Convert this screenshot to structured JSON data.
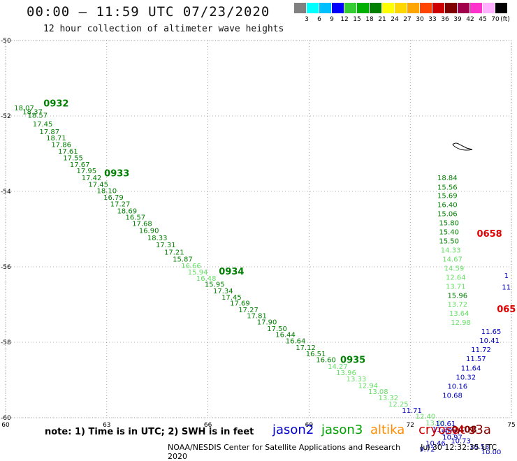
{
  "header": {
    "title": "00:00 – 11:59 UTC 07/23/2020",
    "subtitle": "12 hour collection of altimeter wave heights"
  },
  "colorbar": {
    "colors": [
      "#808080",
      "#00ffff",
      "#00bfff",
      "#0000ff",
      "#33cc33",
      "#00b000",
      "#008000",
      "#ffff00",
      "#ffd700",
      "#ffa500",
      "#ff4500",
      "#cc0000",
      "#800000",
      "#a0004a",
      "#ff33cc",
      "#ffb0ff",
      "#000000"
    ],
    "labels": [
      "3",
      "6",
      "9",
      "12",
      "15",
      "18",
      "21",
      "24",
      "27",
      "30",
      "33",
      "36",
      "39",
      "42",
      "45",
      "70"
    ],
    "unit": "(ft)"
  },
  "axes": {
    "lon_ticks": [
      "60",
      "63",
      "66",
      "69",
      "72",
      "75"
    ],
    "lat_ticks": [
      "-50",
      "-52",
      "-54",
      "-56",
      "-58",
      "-60"
    ]
  },
  "chart_data": {
    "type": "scatter",
    "xlim": [
      60,
      75
    ],
    "ylim": [
      -60,
      -50
    ],
    "grid": true,
    "tracks": [
      {
        "color": "#008000",
        "points": [
          {
            "lon": 60.55,
            "lat": -51.85,
            "v": "18.07"
          },
          {
            "lon": 60.8,
            "lat": -51.95,
            "v": "18.37"
          },
          {
            "lon": 60.95,
            "lat": -52.05,
            "v": "18.57"
          },
          {
            "lon": 61.1,
            "lat": -52.28,
            "v": "17.45"
          },
          {
            "lon": 61.3,
            "lat": -52.48,
            "v": "17.87"
          },
          {
            "lon": 61.5,
            "lat": -52.65,
            "v": "18.71"
          },
          {
            "lon": 61.65,
            "lat": -52.82,
            "v": "17.86"
          },
          {
            "lon": 61.85,
            "lat": -53.0,
            "v": "17.61"
          },
          {
            "lon": 62.0,
            "lat": -53.18,
            "v": "17.55"
          },
          {
            "lon": 62.2,
            "lat": -53.35,
            "v": "17.67"
          },
          {
            "lon": 62.4,
            "lat": -53.52,
            "v": "17.95"
          },
          {
            "lon": 62.55,
            "lat": -53.7,
            "v": "17.42"
          },
          {
            "lon": 62.75,
            "lat": -53.88,
            "v": "17.45"
          },
          {
            "lon": 63.0,
            "lat": -54.05,
            "v": "18.10"
          },
          {
            "lon": 63.2,
            "lat": -54.22,
            "v": "16.79"
          },
          {
            "lon": 63.4,
            "lat": -54.4,
            "v": "17.27"
          },
          {
            "lon": 63.6,
            "lat": -54.58,
            "v": "18.69"
          },
          {
            "lon": 63.85,
            "lat": -54.75,
            "v": "16.57"
          },
          {
            "lon": 64.05,
            "lat": -54.92,
            "v": "17.68"
          },
          {
            "lon": 64.25,
            "lat": -55.1,
            "v": "16.90"
          },
          {
            "lon": 64.5,
            "lat": -55.3,
            "v": "18.33"
          },
          {
            "lon": 64.75,
            "lat": -55.48,
            "v": "17.31"
          },
          {
            "lon": 65.0,
            "lat": -55.68,
            "v": "17.21"
          },
          {
            "lon": 65.25,
            "lat": -55.86,
            "v": "15.87"
          }
        ]
      },
      {
        "color": "#66e066",
        "points": [
          {
            "lon": 65.5,
            "lat": -56.04,
            "v": "16.66"
          },
          {
            "lon": 65.7,
            "lat": -56.2,
            "v": "15.94"
          },
          {
            "lon": 65.95,
            "lat": -56.37,
            "v": "16.48"
          }
        ]
      },
      {
        "color": "#008000",
        "points": [
          {
            "lon": 66.2,
            "lat": -56.53,
            "v": "15.95"
          },
          {
            "lon": 66.45,
            "lat": -56.7,
            "v": "17.34"
          },
          {
            "lon": 66.7,
            "lat": -56.87,
            "v": "17.45"
          },
          {
            "lon": 66.95,
            "lat": -57.03,
            "v": "17.69"
          },
          {
            "lon": 67.2,
            "lat": -57.2,
            "v": "17.27"
          },
          {
            "lon": 67.45,
            "lat": -57.36,
            "v": "17.81"
          },
          {
            "lon": 67.75,
            "lat": -57.53,
            "v": "17.90"
          },
          {
            "lon": 68.05,
            "lat": -57.7,
            "v": "17.50"
          },
          {
            "lon": 68.3,
            "lat": -57.86,
            "v": "16.44"
          },
          {
            "lon": 68.6,
            "lat": -58.03,
            "v": "16.64"
          },
          {
            "lon": 68.9,
            "lat": -58.2,
            "v": "17.12"
          },
          {
            "lon": 69.2,
            "lat": -58.37,
            "v": "16.51"
          },
          {
            "lon": 69.5,
            "lat": -58.53,
            "v": "16.60"
          }
        ]
      },
      {
        "color": "#66e066",
        "points": [
          {
            "lon": 69.85,
            "lat": -58.7,
            "v": "14.27"
          },
          {
            "lon": 70.1,
            "lat": -58.87,
            "v": "13.96"
          },
          {
            "lon": 70.4,
            "lat": -59.04,
            "v": "13.33"
          },
          {
            "lon": 70.75,
            "lat": -59.21,
            "v": "12.94"
          },
          {
            "lon": 71.05,
            "lat": -59.37,
            "v": "13.08"
          },
          {
            "lon": 71.35,
            "lat": -59.54,
            "v": "13.32"
          },
          {
            "lon": 71.65,
            "lat": -59.7,
            "v": "12.25"
          }
        ]
      },
      {
        "color": "#0000c0",
        "points": [
          {
            "lon": 72.05,
            "lat": -59.87,
            "v": "11.71"
          }
        ]
      },
      {
        "color": "#66e066",
        "points": [
          {
            "lon": 72.45,
            "lat": -60.03,
            "v": "12.40"
          },
          {
            "lon": 72.75,
            "lat": -60.2,
            "v": "13.01"
          }
        ]
      },
      {
        "color": "#0000c0",
        "points": [
          {
            "lon": 73.05,
            "lat": -60.22,
            "v": "10.61"
          },
          {
            "lon": 72.95,
            "lat": -60.37,
            "v": "11.26"
          },
          {
            "lon": 73.2,
            "lat": -60.44,
            "v": "10.37"
          },
          {
            "lon": 73.25,
            "lat": -60.58,
            "v": "10.97"
          },
          {
            "lon": 73.5,
            "lat": -60.68,
            "v": "10.73"
          },
          {
            "lon": 74.05,
            "lat": -60.83,
            "v": "10.53"
          },
          {
            "lon": 74.4,
            "lat": -60.97,
            "v": "10.00"
          },
          {
            "lon": 72.75,
            "lat": -60.74,
            "v": "10.46"
          },
          {
            "lon": 72.5,
            "lat": -60.9,
            "v": "9.72"
          }
        ]
      },
      {
        "color": "#008000",
        "points": [
          {
            "lon": 73.1,
            "lat": -53.7,
            "v": "18.84"
          },
          {
            "lon": 73.1,
            "lat": -53.95,
            "v": "15.56"
          },
          {
            "lon": 73.1,
            "lat": -54.18,
            "v": "15.69"
          },
          {
            "lon": 73.1,
            "lat": -54.42,
            "v": "16.40"
          },
          {
            "lon": 73.1,
            "lat": -54.66,
            "v": "15.06"
          },
          {
            "lon": 73.15,
            "lat": -54.9,
            "v": "15.80"
          },
          {
            "lon": 73.15,
            "lat": -55.14,
            "v": "15.40"
          },
          {
            "lon": 73.15,
            "lat": -55.38,
            "v": "15.50"
          }
        ]
      },
      {
        "color": "#66e066",
        "points": [
          {
            "lon": 73.2,
            "lat": -55.62,
            "v": "14.33"
          },
          {
            "lon": 73.25,
            "lat": -55.86,
            "v": "14.67"
          },
          {
            "lon": 73.3,
            "lat": -56.1,
            "v": "14.59"
          },
          {
            "lon": 73.35,
            "lat": -56.34,
            "v": "12.64"
          },
          {
            "lon": 73.35,
            "lat": -56.58,
            "v": "13.71"
          }
        ]
      },
      {
        "color": "#008000",
        "points": [
          {
            "lon": 73.4,
            "lat": -56.82,
            "v": "15.96"
          }
        ]
      },
      {
        "color": "#66e066",
        "points": [
          {
            "lon": 73.4,
            "lat": -57.06,
            "v": "13.72"
          },
          {
            "lon": 73.45,
            "lat": -57.3,
            "v": "13.64"
          },
          {
            "lon": 73.5,
            "lat": -57.54,
            "v": "12.98"
          }
        ]
      },
      {
        "color": "#0000c0",
        "points": [
          {
            "lon": 74.4,
            "lat": -57.78,
            "v": "11.65"
          },
          {
            "lon": 74.35,
            "lat": -58.02,
            "v": "10.41"
          },
          {
            "lon": 74.1,
            "lat": -58.26,
            "v": "11.72"
          },
          {
            "lon": 73.95,
            "lat": -58.5,
            "v": "11.57"
          },
          {
            "lon": 73.8,
            "lat": -58.75,
            "v": "11.64"
          },
          {
            "lon": 73.65,
            "lat": -58.99,
            "v": "10.32"
          },
          {
            "lon": 73.4,
            "lat": -59.23,
            "v": "10.16"
          },
          {
            "lon": 73.25,
            "lat": -59.47,
            "v": "10.68"
          },
          {
            "lon": 74.85,
            "lat": -56.3,
            "v": "1"
          },
          {
            "lon": 74.85,
            "lat": -56.6,
            "v": "11"
          }
        ]
      }
    ],
    "pass_labels": [
      {
        "lon": 61.5,
        "lat": -51.75,
        "text": "0932",
        "color": "#008000"
      },
      {
        "lon": 63.3,
        "lat": -53.6,
        "text": "0933",
        "color": "#008000"
      },
      {
        "lon": 66.7,
        "lat": -56.2,
        "text": "0934",
        "color": "#008000"
      },
      {
        "lon": 70.3,
        "lat": -58.55,
        "text": "0935",
        "color": "#008000"
      },
      {
        "lon": 74.35,
        "lat": -55.2,
        "text": "0658",
        "color": "#e00000"
      },
      {
        "lon": 74.85,
        "lat": -57.2,
        "text": "065",
        "color": "#e00000"
      },
      {
        "lon": 73.6,
        "lat": -60.4,
        "text": "0408",
        "color": "#800000"
      }
    ]
  },
  "footer": {
    "note": "note: 1) Time is in UTC; 2) SWH is in feet",
    "missions": [
      {
        "name": "jason2",
        "color": "#0000cc"
      },
      {
        "name": "jason3",
        "color": "#00a000"
      },
      {
        "name": "altika",
        "color": "#ff8c00"
      },
      {
        "name": "cryosat",
        "color": "#cc0000"
      },
      {
        "name": "s3a",
        "color": "#8b0000"
      }
    ],
    "credit": "NOAA/NESDIS Center for Satellite Applications and Research",
    "timestamp": "Jul 30 12:32:35 UTC 2020"
  }
}
